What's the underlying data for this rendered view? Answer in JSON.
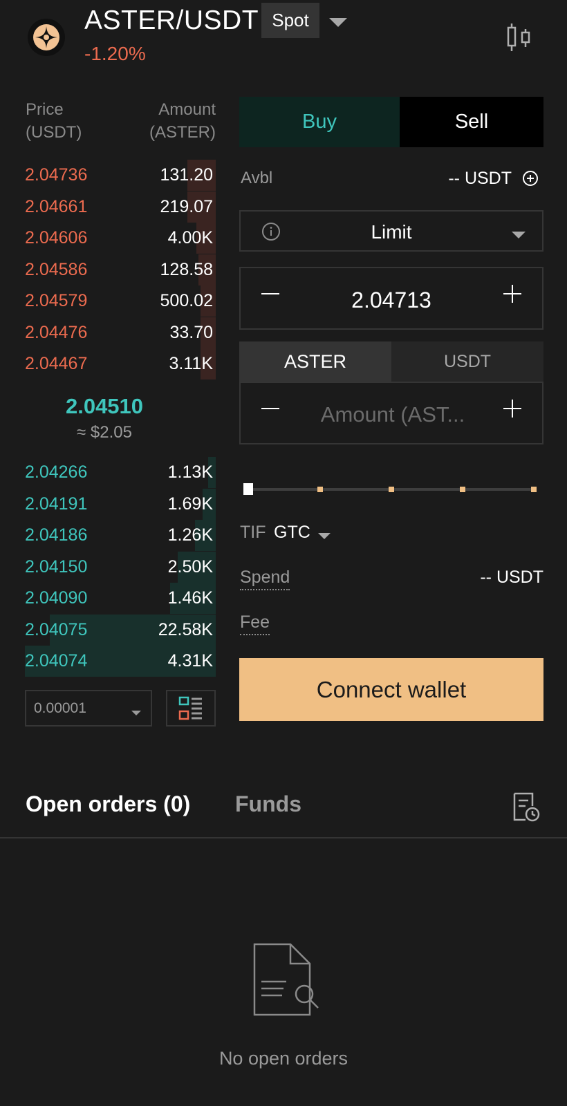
{
  "header": {
    "pair": "ASTER/USDT",
    "market_type": "Spot",
    "change": "-1.20%",
    "logo_icon": "aster-logo-icon",
    "chart_icon": "candlestick-icon"
  },
  "orderbook": {
    "price_header": [
      "Price",
      "(USDT)"
    ],
    "amount_header": [
      "Amount",
      "(ASTER)"
    ],
    "asks": [
      {
        "price": "2.04736",
        "amount": "131.20",
        "depth": 0.15
      },
      {
        "price": "2.04661",
        "amount": "219.07",
        "depth": 0.15
      },
      {
        "price": "2.04606",
        "amount": "4.00K",
        "depth": 0.1
      },
      {
        "price": "2.04586",
        "amount": "128.58",
        "depth": 0.09
      },
      {
        "price": "2.04579",
        "amount": "500.02",
        "depth": 0.08
      },
      {
        "price": "2.04476",
        "amount": "33.70",
        "depth": 0.08
      },
      {
        "price": "2.04467",
        "amount": "3.11K",
        "depth": 0.08
      }
    ],
    "mid_price": "2.04510",
    "mid_usd": "≈ $2.05",
    "bids": [
      {
        "price": "2.04266",
        "amount": "1.13K",
        "depth": 0.04
      },
      {
        "price": "2.04191",
        "amount": "1.69K",
        "depth": 0.07
      },
      {
        "price": "2.04186",
        "amount": "1.26K",
        "depth": 0.11
      },
      {
        "price": "2.04150",
        "amount": "2.50K",
        "depth": 0.2
      },
      {
        "price": "2.04090",
        "amount": "1.46K",
        "depth": 0.24
      },
      {
        "price": "2.04075",
        "amount": "22.58K",
        "depth": 0.87
      },
      {
        "price": "2.04074",
        "amount": "4.31K",
        "depth": 1.0
      }
    ],
    "precision": "0.00001"
  },
  "trade": {
    "buy_label": "Buy",
    "sell_label": "Sell",
    "avbl_label": "Avbl",
    "avbl_value": "-- USDT",
    "order_type": "Limit",
    "price": "2.04713",
    "unit_a": "ASTER",
    "unit_b": "USDT",
    "amount_placeholder": "Amount (AST...",
    "slider_percent": 0,
    "tif_label": "TIF",
    "tif_value": "GTC",
    "spend_label": "Spend",
    "spend_value": "-- USDT",
    "fee_label": "Fee",
    "connect_label": "Connect wallet"
  },
  "orders": {
    "tab_open": "Open orders (0)",
    "tab_funds": "Funds",
    "empty_text": "No open orders"
  },
  "colors": {
    "ask": "#ec6b4f",
    "bid": "#3fc6bd",
    "accent": "#f0bf84",
    "background": "#1b1b1b"
  }
}
